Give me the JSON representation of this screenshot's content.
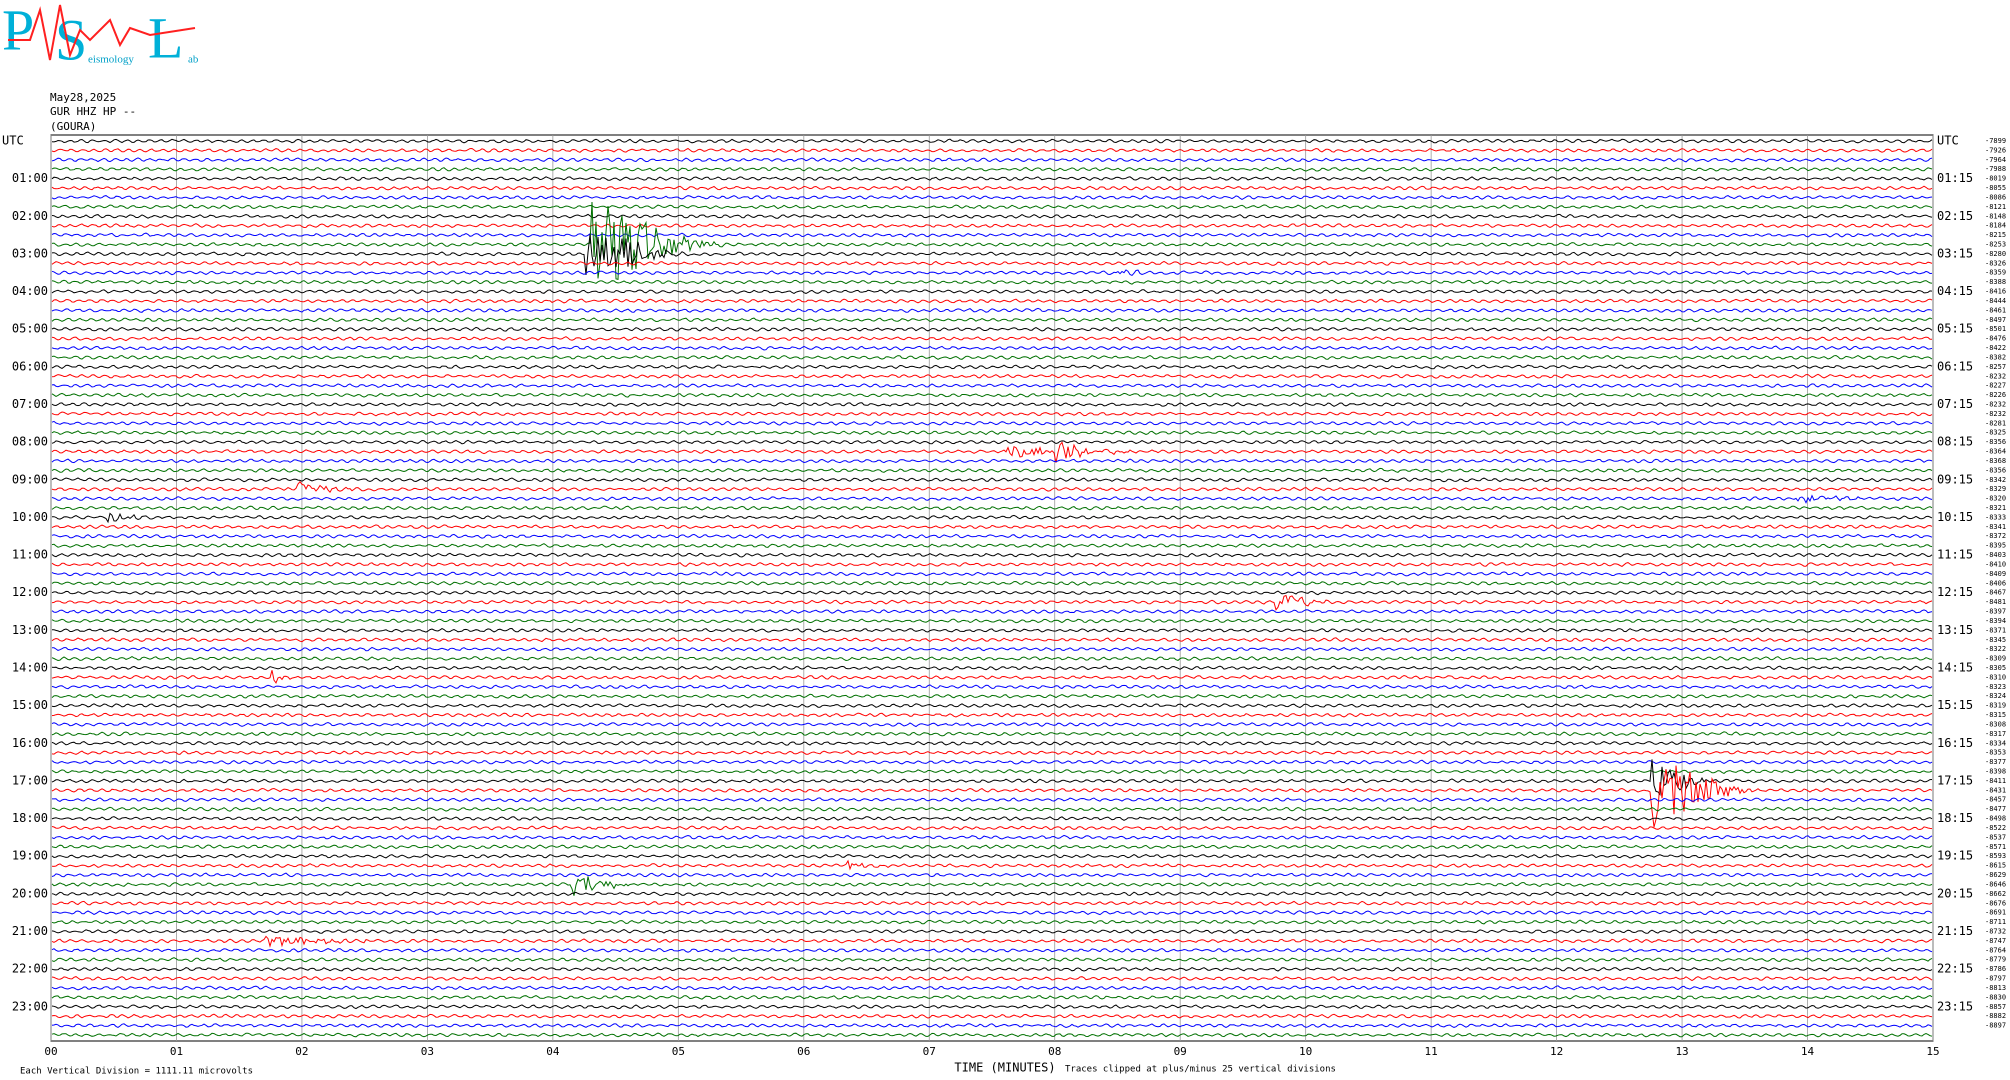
{
  "logo": {
    "letters": [
      "P",
      "S",
      "L"
    ],
    "words": [
      "eismology",
      "ab"
    ]
  },
  "header": {
    "date": "May28,2025",
    "station": "GUR HHZ HP --",
    "site": "(GOURA)"
  },
  "chart_data": {
    "type": "helicorder",
    "x_label": "TIME (MINUTES)",
    "scale_note": "Each Vertical Division = 1111.11 microvolts",
    "clip_note": "Traces clipped at plus/minus 25 vertical divisions",
    "xlim": [
      0,
      15
    ],
    "xticks": [
      {
        "value": 0,
        "label": "00"
      },
      {
        "value": 1,
        "label": "01"
      },
      {
        "value": 2,
        "label": "02"
      },
      {
        "value": 3,
        "label": "03"
      },
      {
        "value": 4,
        "label": "04"
      },
      {
        "value": 5,
        "label": "05"
      },
      {
        "value": 6,
        "label": "06"
      },
      {
        "value": 7,
        "label": "07"
      },
      {
        "value": 8,
        "label": "08"
      },
      {
        "value": 9,
        "label": "09"
      },
      {
        "value": 10,
        "label": "10"
      },
      {
        "value": 11,
        "label": "11"
      },
      {
        "value": 12,
        "label": "12"
      },
      {
        "value": 13,
        "label": "13"
      },
      {
        "value": 14,
        "label": "14"
      },
      {
        "value": 15,
        "label": "15"
      }
    ],
    "grid": true,
    "colors": [
      "#000000",
      "#ff0000",
      "#0000ff",
      "#007000"
    ],
    "left_labels": [
      "UTC",
      "01:00",
      "02:00",
      "03:00",
      "04:00",
      "05:00",
      "06:00",
      "07:00",
      "08:00",
      "09:00",
      "10:00",
      "11:00",
      "12:00",
      "13:00",
      "14:00",
      "15:00",
      "16:00",
      "17:00",
      "18:00",
      "19:00",
      "20:00",
      "21:00",
      "22:00",
      "23:00"
    ],
    "right_labels": [
      "UTC",
      "01:15",
      "02:15",
      "03:15",
      "04:15",
      "05:15",
      "06:15",
      "07:15",
      "08:15",
      "09:15",
      "10:15",
      "11:15",
      "12:15",
      "13:15",
      "14:15",
      "15:15",
      "16:15",
      "17:15",
      "18:15",
      "19:15",
      "20:15",
      "21:15",
      "22:15",
      "23:15"
    ],
    "offsets": [
      -7899,
      -7926,
      -7964,
      -7988,
      -8019,
      -8055,
      -8086,
      -8121,
      -8148,
      -8184,
      -8215,
      -8253,
      -8280,
      -8326,
      -8359,
      -8388,
      -8416,
      -8444,
      -8461,
      -8497,
      -8501,
      -8476,
      -8422,
      -8382,
      -8257,
      -8232,
      -8227,
      -8226,
      -8232,
      -8232,
      -8281,
      -8325,
      -8356,
      -8364,
      -8368,
      -8356,
      -8342,
      -8329,
      -8320,
      -8321,
      -8333,
      -8341,
      -8372,
      -8395,
      -8403,
      -8410,
      -8409,
      -8406,
      -8467,
      -8481,
      -8397,
      -8394,
      -8371,
      -8345,
      -8322,
      -8309,
      -8305,
      -8310,
      -8323,
      -8324,
      -8319,
      -8315,
      -8308,
      -8317,
      -8334,
      -8353,
      -8377,
      -8398,
      -8411,
      -8431,
      -8457,
      -8477,
      -8498,
      -8522,
      -8537,
      -8571,
      -8593,
      -8615,
      -8629,
      -8646,
      -8662,
      -8676,
      -8691,
      -8711,
      -8732,
      -8747,
      -8764,
      -8779,
      -8786,
      -8797,
      -8813,
      -8830,
      -8857,
      -8882,
      -8897
    ]
  }
}
